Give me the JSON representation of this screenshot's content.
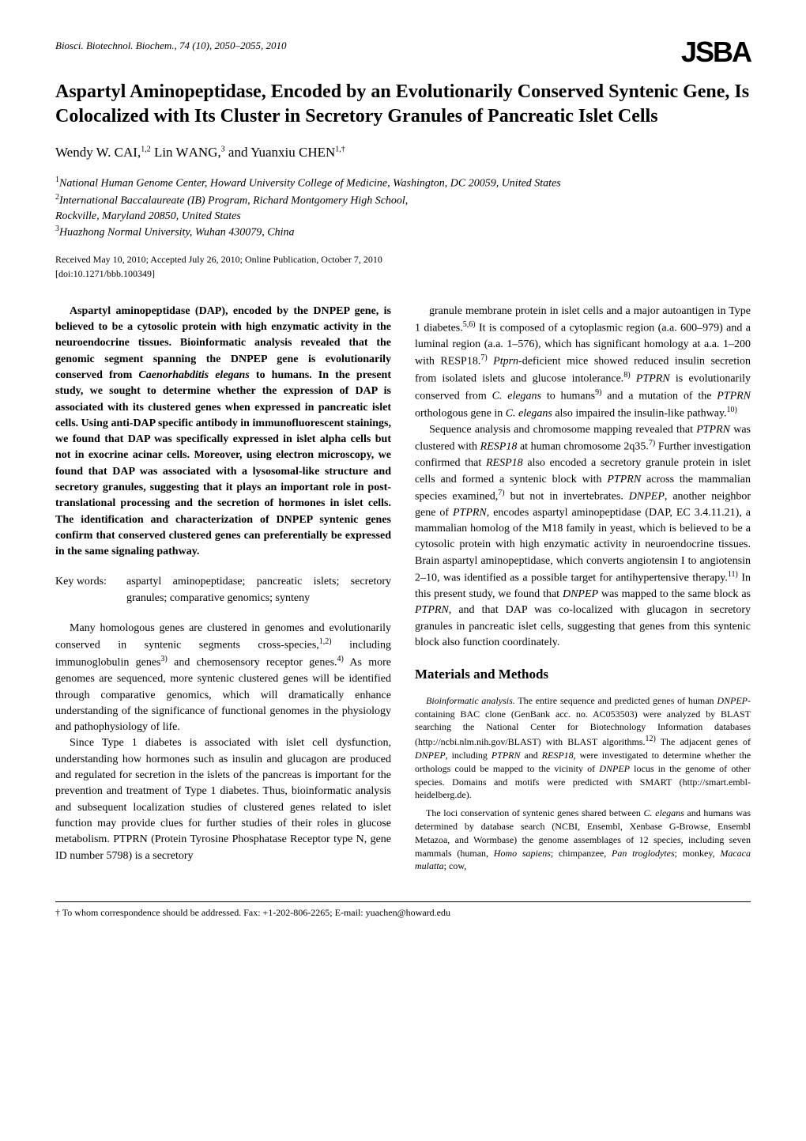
{
  "journal": "Biosci. Biotechnol. Biochem., 74 (10), 2050–2055, 2010",
  "logo": "JSBA",
  "title": "Aspartyl Aminopeptidase, Encoded by an Evolutionarily Conserved Syntenic Gene, Is Colocalized with Its Cluster in Secretory Granules of Pancreatic Islet Cells",
  "authors_html": "Wendy W. C<span class='small-caps'>AI</span>,<span class='sup'>1,2</span> Lin W<span class='small-caps'>ANG</span>,<span class='sup'>3</span> and Yuanxiu C<span class='small-caps'>HEN</span><span class='sup'>1,†</span>",
  "affiliations_html": "<span class='sup'>1</span>National Human Genome Center, Howard University College of Medicine, Washington, DC 20059, United States<br><span class='sup'>2</span>International Baccalaureate (IB) Program, Richard Montgomery High School,<br>Rockville, Maryland 20850, United States<br><span class='sup'>3</span>Huazhong Normal University, Wuhan 430079, China",
  "received": "Received May 10, 2010; Accepted July 26, 2010; Online Publication, October 7, 2010",
  "doi": "[doi:10.1271/bbb.100349]",
  "abstract_html": "Aspartyl aminopeptidase (DAP), encoded by the DNPEP gene, is believed to be a cytosolic protein with high enzymatic activity in the neuroendocrine tissues. Bioinformatic analysis revealed that the genomic segment spanning the DNPEP gene is evolutionarily conserved from <span class='italic'>Caenorhabditis elegans</span> to humans. In the present study, we sought to determine whether the expression of DAP is associated with its clustered genes when expressed in pancreatic islet cells. Using anti-DAP specific antibody in immunofluorescent stainings, we found that DAP was specifically expressed in islet alpha cells but not in exocrine acinar cells. Moreover, using electron microscopy, we found that DAP was associated with a lysosomal-like structure and secretory granules, suggesting that it plays an important role in post-translational processing and the secretion of hormones in islet cells. The identification and characterization of DNPEP syntenic genes confirm that conserved clustered genes can preferentially be expressed in the same signaling pathway.",
  "keywords_label": "Key words:",
  "keywords_content": "aspartyl aminopeptidase; pancreatic islets; secretory granules; comparative genomics; synteny",
  "intro_p1_html": "Many homologous genes are clustered in genomes and evolutionarily conserved in syntenic segments cross-species,<span class='sup'>1,2)</span> including immunoglobulin genes<span class='sup'>3)</span> and chemosensory receptor genes.<span class='sup'>4)</span> As more genomes are sequenced, more syntenic clustered genes will be identified through comparative genomics, which will dramatically enhance understanding of the significance of functional genomes in the physiology and pathophysiology of life.",
  "intro_p2_html": "Since Type 1 diabetes is associated with islet cell dysfunction, understanding how hormones such as insulin and glucagon are produced and regulated for secretion in the islets of the pancreas is important for the prevention and treatment of Type 1 diabetes. Thus, bioinformatic analysis and subsequent localization studies of clustered genes related to islet function may provide clues for further studies of their roles in glucose metabolism. PTPRN (Protein Tyrosine Phosphatase Receptor type N, gene ID number 5798) is a secretory",
  "right_p1_html": "granule membrane protein in islet cells and a major autoantigen in Type 1 diabetes.<span class='sup'>5,6)</span> It is composed of a cytoplasmic region (a.a. 600–979) and a luminal region (a.a. 1–576), which has significant homology at a.a. 1–200 with RESP18.<span class='sup'>7)</span> <span class='italic'>Ptprn</span>-deficient mice showed reduced insulin secretion from isolated islets and glucose intolerance.<span class='sup'>8)</span> <span class='italic'>PTPRN</span> is evolutionarily conserved from <span class='italic'>C. elegans</span> to humans<span class='sup'>9)</span> and a mutation of the <span class='italic'>PTPRN</span> orthologous gene in <span class='italic'>C. elegans</span> also impaired the insulin-like pathway.<span class='sup'>10)</span>",
  "right_p2_html": "Sequence analysis and chromosome mapping revealed that <span class='italic'>PTPRN</span> was clustered with <span class='italic'>RESP18</span> at human chromosome 2q35.<span class='sup'>7)</span> Further investigation confirmed that <span class='italic'>RESP18</span> also encoded a secretory granule protein in islet cells and formed a syntenic block with <span class='italic'>PTPRN</span> across the mammalian species examined,<span class='sup'>7)</span> but not in invertebrates. <span class='italic'>DNPEP</span>, another neighbor gene of <span class='italic'>PTPRN</span>, encodes aspartyl aminopeptidase (DAP, EC 3.4.11.21), a mammalian homolog of the M18 family in yeast, which is believed to be a cytosolic protein with high enzymatic activity in neuroendocrine tissues. Brain aspartyl aminopeptidase, which converts angiotensin I to angiotensin 2–10, was identified as a possible target for antihypertensive therapy.<span class='sup'>11)</span> In this present study, we found that <span class='italic'>DNPEP</span> was mapped to the same block as <span class='italic'>PTPRN</span>, and that DAP was co-localized with glucagon in secretory granules in pancreatic islet cells, suggesting that genes from this syntenic block also function coordinately.",
  "section_heading": "Materials and Methods",
  "methods_p1_html": "<span class='italic'>Bioinformatic analysis.</span> The entire sequence and predicted genes of human <span class='italic'>DNPEP</span>-containing BAC clone (GenBank acc. no. AC053503) were analyzed by BLAST searching the National Center for Biotechnology Information databases (http://ncbi.nlm.nih.gov/BLAST) with BLAST algorithms.<span class='sup'>12)</span> The adjacent genes of <span class='italic'>DNPEP</span>, including <span class='italic'>PTPRN</span> and <span class='italic'>RESP18</span>, were investigated to determine whether the orthologs could be mapped to the vicinity of <span class='italic'>DNPEP</span> locus in the genome of other species. Domains and motifs were predicted with SMART (http://smart.embl-heidelberg.de).",
  "methods_p2_html": "The loci conservation of syntenic genes shared between <span class='italic'>C. elegans</span> and humans was determined by database search (NCBI, Ensembl, Xenbase G-Browse, Ensembl Metazoa, and Wormbase) the genome assemblages of 12 species, including seven mammals (human, <span class='italic'>Homo sapiens</span>; chimpanzee, <span class='italic'>Pan troglodytes</span>; monkey, <span class='italic'>Macaca mulatta</span>; cow,",
  "footnote": "† To whom correspondence should be addressed. Fax: +1-202-806-2265; E-mail: yuachen@howard.edu"
}
